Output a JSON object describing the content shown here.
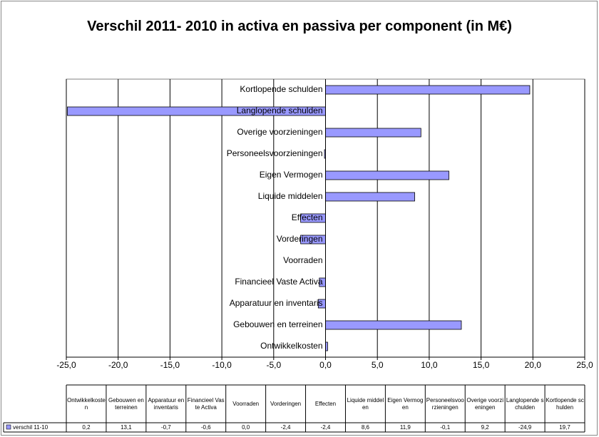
{
  "chart_data": {
    "type": "barh",
    "title": "Verschil 2011- 2010 in activa en passiva per component (in M€)",
    "categories": [
      "Ontwikkelkosten",
      "Gebouwen en terreinen",
      "Apparatuur en inventaris",
      "Financieel Vaste Activa",
      "Voorraden",
      "Vorderingen",
      "Effecten",
      "Liquide middelen",
      "Eigen Vermogen",
      "Personeelsvoorzieningen",
      "Overige voorzieningen",
      "Langlopende schulden",
      "Kortlopende schulden"
    ],
    "series": [
      {
        "name": "verschil 11-10",
        "color": "#9999ff",
        "values": [
          0.2,
          13.1,
          -0.7,
          -0.6,
          0.0,
          -2.4,
          -2.4,
          8.6,
          11.9,
          -0.1,
          9.2,
          -24.9,
          19.7
        ],
        "value_labels": [
          "0,2",
          "13,1",
          "-0,7",
          "-0,6",
          "0,0",
          "-2,4",
          "-2,4",
          "8,6",
          "11,9",
          "-0,1",
          "9,2",
          "-24,9",
          "19,7"
        ]
      }
    ],
    "xlim": [
      -25,
      25
    ],
    "xticks": [
      {
        "value": -25,
        "label": "-25,0"
      },
      {
        "value": -20,
        "label": "-20,0"
      },
      {
        "value": -15,
        "label": "-15,0"
      },
      {
        "value": -10,
        "label": "-10,0"
      },
      {
        "value": -5,
        "label": "-5,0"
      },
      {
        "value": 0,
        "label": "0,0"
      },
      {
        "value": 5,
        "label": "5,0"
      },
      {
        "value": 10,
        "label": "10,0"
      },
      {
        "value": 15,
        "label": "15,0"
      },
      {
        "value": 20,
        "label": "20,0"
      },
      {
        "value": 25,
        "label": "25,0"
      }
    ],
    "grid": true,
    "data_table": true
  }
}
